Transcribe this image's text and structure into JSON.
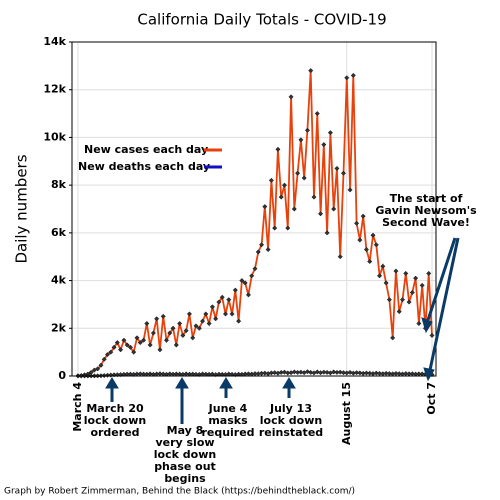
{
  "chart_data": {
    "type": "line",
    "title": "California Daily Totals - COVID-19",
    "y_label": "Daily numbers",
    "credit": "Graph by Robert Zimmerman, Behind the Black (https://behindtheblack.com/)",
    "categories": [
      "March 4",
      null,
      null,
      null,
      null,
      null,
      null,
      null,
      null,
      null,
      null,
      null,
      null,
      null,
      null,
      null,
      null,
      null,
      null,
      null,
      null,
      null,
      null,
      null,
      null,
      null,
      null,
      null,
      null,
      null,
      null,
      null,
      null,
      null,
      null,
      null,
      null,
      null,
      null,
      null,
      null,
      null,
      null,
      null,
      null,
      null,
      null,
      null,
      null,
      null,
      null,
      null,
      null,
      null,
      null,
      null,
      null,
      null,
      null,
      null,
      null,
      null,
      null,
      null,
      null,
      null,
      null,
      null,
      null,
      null,
      null,
      null,
      null,
      null,
      null,
      null,
      null,
      null,
      null,
      null,
      null,
      null,
      "August 15",
      null,
      null,
      null,
      null,
      null,
      null,
      null,
      null,
      null,
      null,
      null,
      null,
      null,
      null,
      null,
      null,
      null,
      null,
      null,
      null,
      null,
      null,
      null,
      null,
      null,
      "Oct 7"
    ],
    "series": [
      {
        "name": "New cases each day",
        "color": "#e8420c",
        "values": [
          10,
          20,
          50,
          80,
          150,
          250,
          300,
          450,
          700,
          900,
          1000,
          1200,
          1400,
          1100,
          1500,
          1300,
          1200,
          1000,
          1600,
          1400,
          1500,
          2200,
          1300,
          1800,
          2400,
          1100,
          2500,
          1500,
          1800,
          2000,
          1300,
          2200,
          1700,
          1900,
          2600,
          1600,
          2100,
          2000,
          2300,
          2600,
          2200,
          2900,
          2400,
          3100,
          3300,
          2600,
          3200,
          2600,
          3600,
          2300,
          4000,
          3900,
          3400,
          4200,
          4500,
          5200,
          5500,
          7100,
          5300,
          8200,
          6200,
          9500,
          7500,
          8000,
          6200,
          11700,
          7000,
          8500,
          9900,
          8300,
          10300,
          12800,
          7500,
          11000,
          6800,
          9700,
          6000,
          10200,
          7000,
          8700,
          5000,
          8500,
          12500,
          7800,
          12600,
          6400,
          5700,
          6700,
          5300,
          4800,
          5900,
          5500,
          4200,
          4600,
          3900,
          3200,
          1600,
          4400,
          2700,
          3200,
          4300,
          3100,
          3500,
          4100,
          2200,
          3800,
          2000,
          4300,
          1700
        ]
      },
      {
        "name": "New deaths each day",
        "color": "#1010c0",
        "values": [
          0,
          0,
          1,
          2,
          3,
          5,
          8,
          12,
          20,
          30,
          40,
          50,
          55,
          60,
          70,
          75,
          80,
          70,
          85,
          90,
          80,
          75,
          90,
          70,
          85,
          95,
          80,
          70,
          90,
          75,
          85,
          80,
          70,
          90,
          75,
          80,
          70,
          65,
          85,
          75,
          70,
          80,
          60,
          75,
          70,
          65,
          80,
          70,
          60,
          75,
          70,
          85,
          90,
          80,
          100,
          95,
          110,
          120,
          100,
          130,
          140,
          120,
          150,
          160,
          130,
          140,
          170,
          150,
          160,
          140,
          180,
          150,
          130,
          170,
          140,
          160,
          150,
          130,
          170,
          150,
          160,
          140,
          130,
          150,
          120,
          140,
          130,
          110,
          125,
          115,
          100,
          120,
          105,
          95,
          110,
          100,
          90,
          105,
          95,
          85,
          100,
          90,
          95,
          80,
          90,
          85,
          75,
          80,
          60
        ]
      }
    ],
    "ylim": [
      0,
      14000
    ],
    "yticks": [
      0,
      {
        "value": 2000,
        "label": "2k"
      },
      {
        "value": 4000,
        "label": "4k"
      },
      {
        "value": 6000,
        "label": "6k"
      },
      {
        "value": 8000,
        "label": "8k"
      },
      {
        "value": 10000,
        "label": "10k"
      },
      {
        "value": 12000,
        "label": "12k"
      },
      {
        "value": 14000,
        "label": "14k"
      }
    ],
    "grid": true,
    "legend": "upper left",
    "annotations": [
      {
        "lines": [
          "March 20",
          "lock down",
          "ordered"
        ]
      },
      {
        "lines": [
          "May 8",
          "very slow",
          "lock down",
          "phase out",
          "begins"
        ]
      },
      {
        "lines": [
          "June 4",
          "masks",
          "required"
        ]
      },
      {
        "lines": [
          "July 13",
          "lock down",
          "reinstated"
        ]
      },
      {
        "lines": [
          "The start of",
          "Gavin Newsom's",
          "Second Wave!"
        ]
      }
    ]
  }
}
